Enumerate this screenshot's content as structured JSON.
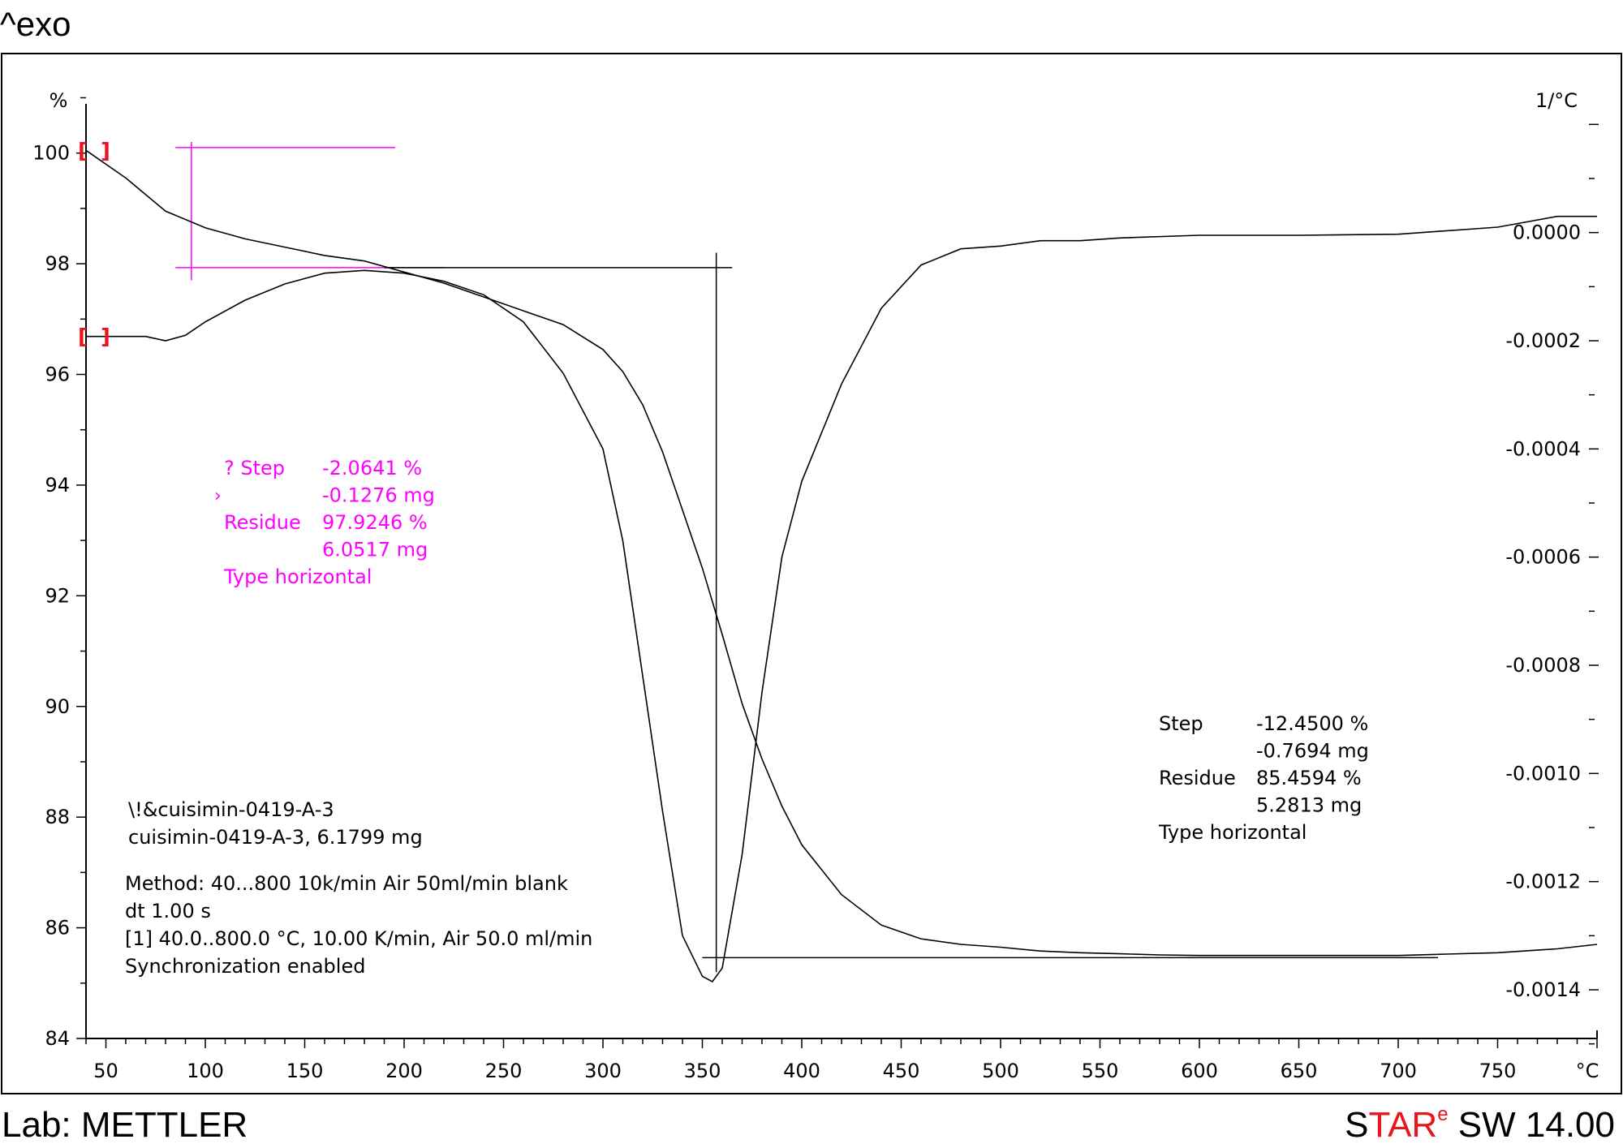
{
  "header": {
    "exo_label": "^exo"
  },
  "footer": {
    "lab": "Lab: METTLER",
    "software_s": "S",
    "software_tar": "TAR",
    "software_e": "e",
    "software_rest": " SW 14.00"
  },
  "chart_data": {
    "type": "line",
    "xlabel": "°C",
    "ylabel_left": "%",
    "ylabel_right": "1/°C",
    "xlim": [
      40,
      800
    ],
    "ylim_left": [
      84,
      101.3
    ],
    "ylim_right": [
      -0.00149,
      0.00028
    ],
    "x_ticks": [
      50,
      100,
      150,
      200,
      250,
      300,
      350,
      400,
      450,
      500,
      550,
      600,
      650,
      700,
      750
    ],
    "y_ticks_left": [
      84,
      86,
      88,
      90,
      92,
      94,
      96,
      98,
      100
    ],
    "y_ticks_right": [
      "0.0000",
      "-0.0002",
      "-0.0004",
      "-0.0006",
      "-0.0008",
      "-0.0010",
      "-0.0012",
      "-0.0014"
    ],
    "y_ticks_right_values": [
      0,
      -0.0002,
      -0.0004,
      -0.0006,
      -0.0008,
      -0.001,
      -0.0012,
      -0.0014
    ],
    "series": [
      {
        "axis": "left",
        "x": [
          40,
          60,
          80,
          100,
          120,
          140,
          160,
          180,
          190,
          200,
          220,
          240,
          260,
          280,
          300,
          310,
          320,
          330,
          340,
          350,
          360,
          370,
          380,
          390,
          400,
          420,
          440,
          460,
          480,
          500,
          520,
          540,
          560,
          580,
          600,
          650,
          700,
          720,
          750,
          780,
          800
        ],
        "y": [
          100.05,
          99.55,
          98.95,
          98.65,
          98.45,
          98.3,
          98.15,
          98.05,
          97.95,
          97.85,
          97.65,
          97.4,
          97.15,
          96.9,
          96.45,
          96.05,
          95.45,
          94.6,
          93.55,
          92.5,
          91.3,
          90.05,
          89.05,
          88.2,
          87.5,
          86.6,
          86.05,
          85.8,
          85.7,
          85.65,
          85.58,
          85.55,
          85.53,
          85.51,
          85.5,
          85.5,
          85.5,
          85.52,
          85.55,
          85.62,
          85.7
        ]
      },
      {
        "axis": "right",
        "x": [
          40,
          60,
          70,
          80,
          90,
          100,
          120,
          140,
          160,
          180,
          200,
          220,
          240,
          260,
          280,
          300,
          310,
          320,
          330,
          340,
          350,
          355,
          360,
          370,
          380,
          390,
          400,
          420,
          440,
          460,
          480,
          500,
          520,
          540,
          560,
          600,
          650,
          700,
          750,
          780,
          800
        ],
        "y": [
          -0.000192,
          -0.000192,
          -0.000192,
          -0.0002,
          -0.00019,
          -0.000165,
          -0.000125,
          -9.5e-05,
          -7.5e-05,
          -7e-05,
          -7.5e-05,
          -9e-05,
          -0.000115,
          -0.000165,
          -0.00026,
          -0.0004,
          -0.00057,
          -0.00082,
          -0.00107,
          -0.0013,
          -0.001375,
          -0.001385,
          -0.00136,
          -0.00115,
          -0.00085,
          -0.0006,
          -0.00046,
          -0.00028,
          -0.00014,
          -6e-05,
          -3e-05,
          -2.5e-05,
          -1.5e-05,
          -1.5e-05,
          -1e-05,
          -5e-06,
          -5e-06,
          -3e-06,
          1e-05,
          3e-05,
          3e-05
        ]
      }
    ],
    "annotations": [
      {
        "color": "#ff00ff",
        "lines": [
          [
            "? Step",
            "-2.0641 %"
          ],
          [
            "",
            "-0.1276 mg"
          ],
          [
            "Residue",
            "97.9246 %"
          ],
          [
            "",
            "6.0517 mg"
          ],
          [
            "Type horizontal",
            ""
          ]
        ],
        "marker": "›"
      },
      {
        "color": "#000000",
        "lines": [
          [
            "Step",
            "-12.4500 %"
          ],
          [
            "",
            "-0.7694 mg"
          ],
          [
            "Residue",
            "85.4594 %"
          ],
          [
            "",
            "5.2813 mg"
          ],
          [
            "Type horizontal",
            ""
          ]
        ]
      }
    ],
    "sample_info": {
      "line1": "\\!&cuisimin-0419-A-3",
      "line2": "cuisimin-0419-A-3, 6.1799 mg",
      "line3": "Method: 40...800 10k/min Air 50ml/min blank",
      "line4": "dt 1.00 s",
      "line5": "[1] 40.0..800.0 °C, 10.00 K/min, Air 50.0 ml/min",
      "line6": "Synchronization enabled"
    },
    "step_lines": {
      "step1": {
        "horizontal_y_pct": 97.93,
        "horizontal_x_range": [
          85,
          220
        ],
        "vertical_x": 93,
        "vertical_y_range": [
          97.7,
          100.2
        ]
      },
      "step2": {
        "horizontal_y_pct": 97.93,
        "horizontal_x_range": [
          190,
          365
        ],
        "vertical_x": 357,
        "vertical_y_range": [
          85.2,
          98.2
        ],
        "residue_y_pct": 85.46,
        "residue_x_range": [
          350,
          720
        ]
      }
    }
  }
}
